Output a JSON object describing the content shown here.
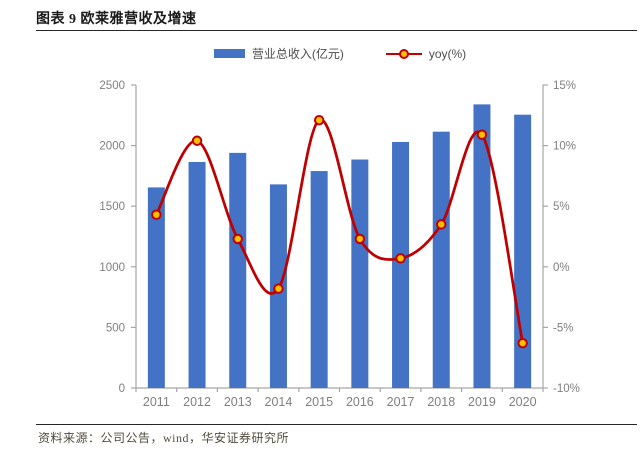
{
  "header": {
    "title": "图表 9 欧莱雅营收及增速"
  },
  "footer": {
    "source": "资料来源：公司公告，wind，华安证券研究所"
  },
  "legend": {
    "bar_label": "营业总收入(亿元)",
    "line_label": "yoy(%)"
  },
  "colors": {
    "bar": "#4472C4",
    "line": "#C00000",
    "marker_fill": "#FFC000",
    "axis": "#A6A6A6",
    "tick_text": "#7F7F7F",
    "title_text": "#1A1A1A",
    "source_text": "#504D3D"
  },
  "chart_data": {
    "type": "bar",
    "subtype": "dual-axis bar + smooth line",
    "title": "图表 9 欧莱雅营收及增速",
    "categories": [
      "2011",
      "2012",
      "2013",
      "2014",
      "2015",
      "2016",
      "2017",
      "2018",
      "2019",
      "2020"
    ],
    "series": [
      {
        "name": "营业总收入(亿元)",
        "type": "bar",
        "axis": "left",
        "values": [
          1655,
          1865,
          1940,
          1680,
          1790,
          1885,
          2030,
          2115,
          2340,
          2255
        ]
      },
      {
        "name": "yoy(%)",
        "type": "line",
        "axis": "right",
        "values": [
          4.3,
          10.4,
          2.3,
          -1.8,
          12.1,
          2.3,
          0.7,
          3.5,
          10.9,
          -6.3
        ]
      }
    ],
    "left_axis": {
      "min": 0,
      "max": 2500,
      "ticks": [
        0,
        500,
        1000,
        1500,
        2000,
        2500
      ]
    },
    "right_axis": {
      "min": -10,
      "max": 15,
      "ticks": [
        -10,
        -5,
        0,
        5,
        10,
        15
      ],
      "format": "percent"
    },
    "grid": false,
    "legend_position": "top-center"
  }
}
